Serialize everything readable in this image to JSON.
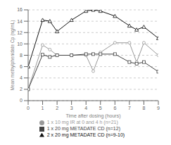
{
  "chart_data": {
    "type": "line",
    "xlabel": "Time after dosing (hours)",
    "ylabel": "Mean methylphenidate Cp (ng/mL)",
    "x": [
      0,
      1,
      1.5,
      2,
      3,
      4,
      4.5,
      5,
      6,
      7,
      7.5,
      8,
      9
    ],
    "series": [
      {
        "name": "1 x 10 mg IR at 0 and 4 h (n=21)",
        "color": "#999999",
        "marker": "circle",
        "values": [
          2.0,
          9.8,
          9.0,
          8.0,
          8.0,
          8.0,
          5.2,
          8.5,
          10.2,
          10.2,
          6.8,
          10.2,
          8.0
        ]
      },
      {
        "name": "1 x 20 mg METADATE CD (n=12)",
        "color": "#444444",
        "marker": "square",
        "values": [
          2.0,
          8.1,
          7.7,
          8.0,
          8.0,
          8.2,
          8.2,
          8.2,
          8.2,
          6.8,
          6.5,
          6.8,
          5.1
        ]
      },
      {
        "name": "2 x 20 mg METADATE CD (n=9-10)",
        "color": "#111111",
        "marker": "triangle",
        "values": [
          6.0,
          14.2,
          14.0,
          12.2,
          14.2,
          15.8,
          16.0,
          15.8,
          14.9,
          13.2,
          12.5,
          13.0,
          11.0
        ]
      }
    ],
    "xlim": [
      0,
      9
    ],
    "xticks": [
      0,
      1,
      2,
      3,
      4,
      5,
      6,
      7,
      8,
      9
    ],
    "ylim": [
      0,
      16
    ],
    "yticks": [
      0,
      2,
      4,
      6,
      8,
      10,
      12,
      14,
      16
    ],
    "grid": "y"
  }
}
